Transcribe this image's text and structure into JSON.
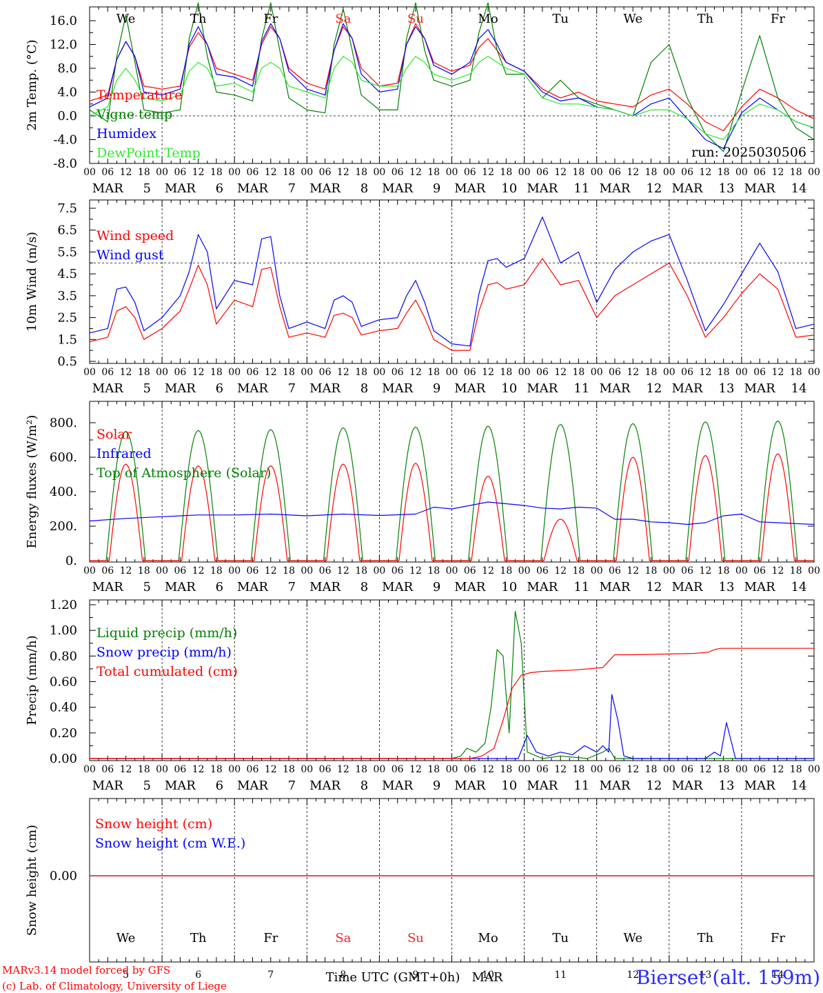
{
  "days": [
    {
      "date": "5",
      "dow": "We",
      "weekend": false
    },
    {
      "date": "6",
      "dow": "Th",
      "weekend": false
    },
    {
      "date": "7",
      "dow": "Fr",
      "weekend": false
    },
    {
      "date": "8",
      "dow": "Sa",
      "weekend": true
    },
    {
      "date": "9",
      "dow": "Su",
      "weekend": true
    },
    {
      "date": "10",
      "dow": "Mo",
      "weekend": false
    },
    {
      "date": "11",
      "dow": "Tu",
      "weekend": false
    },
    {
      "date": "12",
      "dow": "We",
      "weekend": false
    },
    {
      "date": "13",
      "dow": "Th",
      "weekend": false
    },
    {
      "date": "14",
      "dow": "Fr",
      "weekend": false
    }
  ],
  "month": "MAR",
  "hour_ticks": [
    "00",
    "06",
    "12",
    "18"
  ],
  "final_tick": "00",
  "colors": {
    "red": "#ff0000",
    "blue": "#0000ff",
    "green": "#008000",
    "lightgreen": "#2ee82e",
    "weekend": "#ff2020",
    "site": "#2b2bff"
  },
  "run_label": "run: 2025030506",
  "xlabel": "Time UTC (GMT+0h)",
  "xlabel_month": "MAR",
  "footer": {
    "model": "MARv3.14 model forced by GFS",
    "credit": "(c) Lab. of Climatology, University of Liege",
    "site": "Bierset (alt. 159m)"
  },
  "chart_data": [
    {
      "type": "line",
      "ylabel": "2m Temp. (°C)",
      "ylim": [
        -8,
        18
      ],
      "yticks": [
        "16.0",
        "12.0",
        "8.0",
        "4.0",
        "0.0",
        "-4.0",
        "-8.0"
      ],
      "ytick_values": [
        16,
        12,
        8,
        4,
        0,
        -4,
        -8
      ],
      "ref_line": 0,
      "x_hours": [
        0,
        6,
        9,
        12,
        15,
        18,
        24,
        30,
        33,
        36,
        39,
        42,
        48,
        54,
        57,
        60,
        63,
        66,
        72,
        78,
        81,
        84,
        87,
        90,
        96,
        102,
        105,
        108,
        111,
        114,
        120,
        126,
        129,
        132,
        135,
        138,
        144,
        150,
        156,
        162,
        168,
        174,
        180,
        186,
        192,
        198,
        204,
        210,
        216,
        222,
        228,
        234,
        240
      ],
      "series": [
        {
          "name": "Temperature",
          "color": "red",
          "values": [
            2.5,
            3.5,
            9.5,
            12.5,
            10,
            5,
            4.5,
            5,
            11.5,
            14,
            12,
            8,
            7,
            6,
            12,
            15,
            13,
            8,
            5.5,
            4.5,
            11,
            15,
            13,
            8,
            5,
            5.5,
            12,
            15.5,
            13,
            9,
            7.5,
            8.5,
            11.5,
            13,
            11,
            9,
            7.5,
            4.5,
            3,
            4,
            2.5,
            2,
            1.5,
            3.5,
            4.5,
            2,
            -1,
            -2.5,
            1.5,
            4.5,
            3,
            1,
            -0.5
          ]
        },
        {
          "name": "Vigne temp",
          "color": "green",
          "values": [
            1,
            -1,
            10,
            17,
            9,
            1,
            0.5,
            1,
            13,
            19,
            10,
            4,
            3.5,
            2.5,
            13,
            19,
            11,
            3,
            1,
            0.5,
            12,
            18,
            11,
            3.5,
            1,
            1,
            13,
            19,
            11,
            6,
            5,
            6,
            14,
            19,
            11,
            7,
            7,
            3,
            6,
            3,
            2,
            1,
            0,
            9,
            12,
            3,
            -3,
            -6,
            4,
            13.5,
            3,
            -2,
            -4
          ]
        },
        {
          "name": "Humidex",
          "color": "blue",
          "values": [
            1.5,
            3,
            9.5,
            12.5,
            10,
            4,
            3.5,
            4.5,
            12,
            15,
            12,
            7,
            6.5,
            5,
            12.5,
            15.5,
            13,
            7.5,
            4.5,
            3.5,
            11,
            15.5,
            13,
            7,
            4,
            4.5,
            12,
            15,
            13,
            8.5,
            7,
            9,
            13,
            14.5,
            12,
            9,
            7.5,
            4,
            2.5,
            3,
            1.5,
            1,
            0,
            2,
            3,
            -0.5,
            -4,
            -5.5,
            0.5,
            3,
            1,
            -1,
            -2
          ]
        },
        {
          "name": "DewPoint Temp",
          "color": "lightgreen",
          "values": [
            0,
            1.5,
            6,
            8,
            6,
            3,
            2.5,
            3.5,
            7.5,
            9,
            8,
            5,
            5.5,
            4,
            8,
            9,
            8,
            5,
            4,
            3,
            8,
            10,
            9,
            6,
            5,
            5,
            8,
            10,
            9,
            7,
            6,
            7,
            9,
            10,
            9,
            8,
            7,
            3,
            2,
            2,
            1.5,
            1,
            0,
            1,
            1,
            -0.5,
            -3,
            -4,
            0,
            2,
            1,
            -1,
            -2
          ]
        }
      ]
    },
    {
      "type": "line",
      "ylabel": "10m Wind (m/s)",
      "ylim": [
        0.5,
        7.5
      ],
      "yticks": [
        "7.5",
        "6.5",
        "5.5",
        "4.5",
        "3.5",
        "2.5",
        "1.5",
        "0.5"
      ],
      "ytick_values": [
        7.5,
        6.5,
        5.5,
        4.5,
        3.5,
        2.5,
        1.5,
        0.5
      ],
      "ref_line": 5,
      "x_hours": [
        0,
        6,
        9,
        12,
        15,
        18,
        24,
        30,
        33,
        36,
        39,
        42,
        48,
        54,
        57,
        60,
        63,
        66,
        72,
        78,
        81,
        84,
        87,
        90,
        96,
        102,
        105,
        108,
        111,
        114,
        120,
        126,
        129,
        132,
        135,
        138,
        144,
        150,
        156,
        162,
        168,
        174,
        180,
        186,
        192,
        198,
        204,
        210,
        216,
        222,
        228,
        234,
        240
      ],
      "series": [
        {
          "name": "Wind speed",
          "color": "red",
          "values": [
            1.4,
            1.6,
            2.8,
            3.0,
            2.5,
            1.5,
            2.0,
            2.8,
            3.8,
            4.9,
            4.0,
            2.2,
            3.3,
            3.0,
            4.7,
            4.8,
            3.0,
            1.6,
            1.8,
            1.6,
            2.6,
            2.7,
            2.5,
            1.7,
            1.9,
            2.0,
            2.7,
            3.3,
            2.5,
            1.5,
            1.0,
            1.0,
            2.8,
            4.0,
            4.1,
            3.8,
            4.0,
            5.2,
            4.0,
            4.2,
            2.5,
            3.5,
            4.0,
            4.5,
            5.0,
            3.5,
            1.6,
            2.5,
            3.6,
            4.5,
            3.8,
            1.6,
            1.7
          ]
        },
        {
          "name": "Wind gust",
          "color": "blue",
          "values": [
            1.8,
            2.0,
            3.8,
            3.9,
            3.2,
            1.9,
            2.5,
            3.5,
            4.6,
            6.3,
            5.5,
            2.9,
            4.2,
            4.0,
            6.1,
            6.2,
            3.5,
            2.0,
            2.3,
            2.0,
            3.3,
            3.5,
            3.2,
            2.1,
            2.4,
            2.5,
            3.5,
            4.2,
            3.2,
            1.9,
            1.3,
            1.2,
            3.6,
            5.1,
            5.2,
            4.8,
            5.2,
            7.1,
            5.0,
            5.5,
            3.2,
            4.7,
            5.5,
            6.0,
            6.3,
            4.2,
            1.9,
            3.1,
            4.5,
            5.9,
            4.6,
            2.0,
            2.2
          ]
        }
      ]
    },
    {
      "type": "line",
      "ylabel": "Energy fluxes (W/m²)",
      "ylim": [
        0,
        900
      ],
      "yticks": [
        "800.",
        "600.",
        "400.",
        "200.",
        "0."
      ],
      "ytick_values": [
        800,
        600,
        400,
        200,
        0
      ],
      "series": [
        {
          "name": "Solar",
          "color": "red",
          "daily_peaks": [
            560,
            550,
            550,
            560,
            565,
            490,
            240,
            600,
            610,
            620
          ]
        },
        {
          "name": "Infrared",
          "color": "blue",
          "x_hours": [
            0,
            12,
            24,
            36,
            48,
            60,
            72,
            84,
            96,
            108,
            114,
            120,
            126,
            132,
            138,
            144,
            150,
            156,
            162,
            168,
            174,
            180,
            186,
            192,
            198,
            204,
            210,
            216,
            222,
            228,
            234,
            240
          ],
          "values": [
            230,
            245,
            255,
            265,
            265,
            270,
            260,
            270,
            262,
            270,
            310,
            300,
            320,
            340,
            330,
            320,
            305,
            300,
            310,
            305,
            240,
            240,
            225,
            220,
            210,
            220,
            260,
            270,
            225,
            220,
            215,
            210
          ]
        },
        {
          "name": "Top of Atmosphere (Solar)",
          "color": "green",
          "daily_peaks": [
            750,
            755,
            760,
            770,
            775,
            780,
            790,
            795,
            805,
            810
          ]
        }
      ]
    },
    {
      "type": "line",
      "ylabel": "Precip (mm/h)",
      "ylim": [
        0,
        1.2
      ],
      "yticks": [
        "1.20",
        "1.00",
        "0.80",
        "0.60",
        "0.40",
        "0.20",
        "0.00"
      ],
      "ytick_values": [
        1.2,
        1.0,
        0.8,
        0.6,
        0.4,
        0.2,
        0.0
      ],
      "series": [
        {
          "name": "Liquid precip (mm/h)",
          "color": "green",
          "x_hours": [
            0,
            120,
            123,
            125,
            128,
            131,
            133,
            135,
            137,
            139,
            141,
            143,
            145,
            150,
            156,
            165,
            170,
            172,
            174,
            240
          ],
          "values": [
            0,
            0,
            0.02,
            0.08,
            0.05,
            0.12,
            0.4,
            0.85,
            0.8,
            0.2,
            1.15,
            0.9,
            0.05,
            0,
            0.02,
            0,
            0.05,
            0.08,
            0,
            0
          ]
        },
        {
          "name": "Snow precip (mm/h)",
          "color": "blue",
          "x_hours": [
            0,
            142,
            145,
            148,
            152,
            156,
            160,
            164,
            168,
            170,
            172,
            173,
            175,
            177,
            180,
            204,
            207,
            209,
            210,
            211,
            214,
            240
          ],
          "values": [
            0,
            0,
            0.18,
            0.05,
            0.02,
            0.05,
            0.03,
            0.1,
            0.05,
            0.1,
            0.05,
            0.5,
            0.3,
            0.02,
            0,
            0,
            0.05,
            0.02,
            0.15,
            0.28,
            0,
            0
          ]
        },
        {
          "name": "Total cumulated (cm)",
          "color": "red",
          "x_hours": [
            0,
            126,
            130,
            134,
            137,
            140,
            143,
            146,
            150,
            160,
            170,
            172,
            174,
            180,
            200,
            205,
            207,
            209,
            240
          ],
          "values": [
            0,
            0,
            0.02,
            0.08,
            0.3,
            0.55,
            0.65,
            0.67,
            0.68,
            0.69,
            0.71,
            0.76,
            0.81,
            0.81,
            0.82,
            0.83,
            0.85,
            0.86,
            0.86
          ]
        }
      ]
    },
    {
      "type": "line",
      "ylabel": "Snow height (cm)",
      "yticks": [
        "0.00"
      ],
      "ytick_values": [
        0
      ],
      "series": [
        {
          "name": "Snow height (cm)",
          "color": "red",
          "x_hours": [
            0,
            240
          ],
          "values": [
            0,
            0
          ]
        },
        {
          "name": "Snow height (cm W.E.)",
          "color": "blue",
          "x_hours": [
            0,
            240
          ],
          "values": [
            0,
            0
          ]
        }
      ]
    }
  ]
}
